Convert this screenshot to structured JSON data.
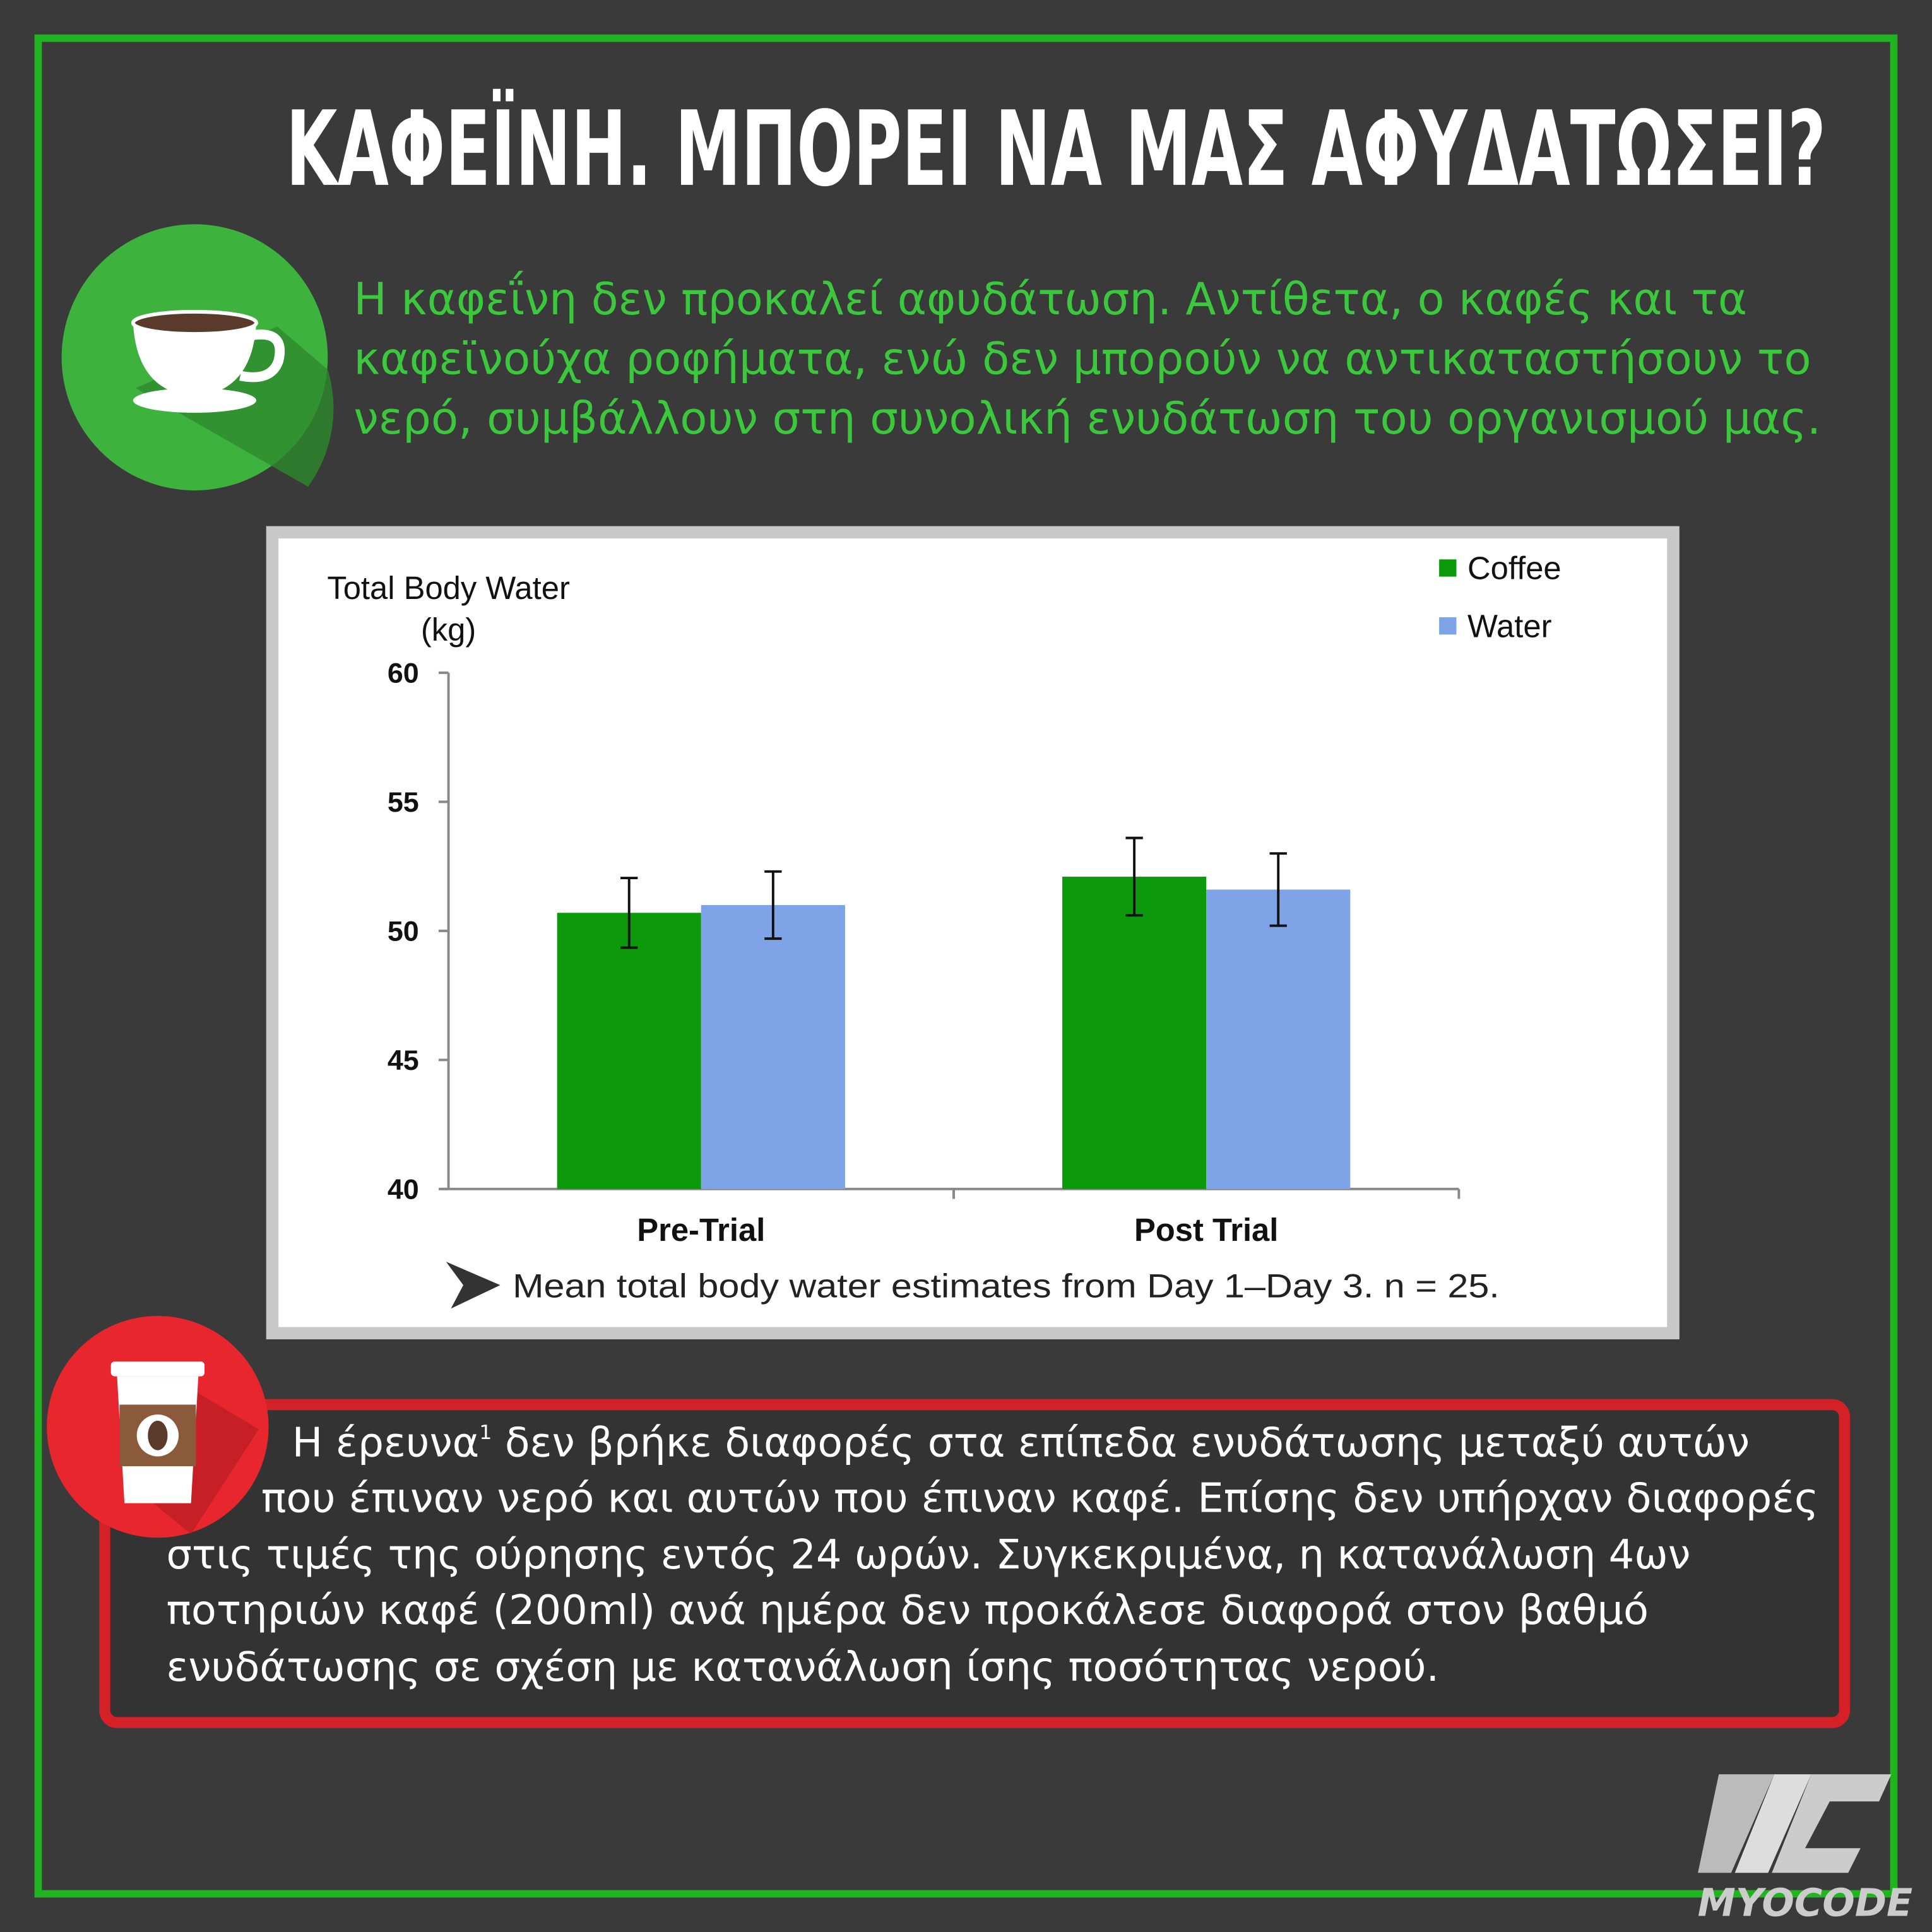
{
  "title": "ΚΑΦΕΪΝΗ. ΜΠΟΡΕΙ ΝΑ ΜΑΣ ΑΦΥΔΑΤΩΣΕΙ?",
  "summary_lines": [
    "Η καφεΐνη δεν προκαλεί αφυδάτωση. Αντίθετα, ο καφές και τα",
    "καφεϊνούχα ροφήματα, ενώ δεν μπορούν να αντικαταστήσουν το",
    "νερό, συμβάλλουν στη συνολική ενυδάτωση του οργανισμού μας."
  ],
  "chart_data": {
    "type": "bar",
    "ylabel": [
      "Total Body Water",
      "(kg)"
    ],
    "categories": [
      "Pre-Trial",
      "Post Trial"
    ],
    "series": [
      {
        "name": "Coffee",
        "color": "#0c9a0c",
        "values": [
          50.7,
          52.1
        ],
        "errors": [
          1.35,
          1.5
        ]
      },
      {
        "name": "Water",
        "color": "#7ea3e6",
        "values": [
          51.0,
          51.6
        ],
        "errors": [
          1.3,
          1.4
        ]
      }
    ],
    "ylim": [
      40,
      60
    ],
    "yticks": [
      40,
      45,
      50,
      55,
      60
    ],
    "grid": false,
    "legend": "top-right",
    "caption": "Mean total body water estimates from Day 1–Day 3. n = 25."
  },
  "research": {
    "intro": "Η έρευνα",
    "footnote": "1",
    "lines": [
      " δεν βρήκε διαφορές στα επίπεδα ενυδάτωσης μεταξύ αυτών",
      "που έπιναν νερό και αυτών που έπιναν καφέ. Επίσης δεν υπήρχαν διαφορές",
      "στις τιμές της ούρησης εντός 24 ωρών. Συγκεκριμένα, η κατανάλωση 4ων",
      "ποτηριών καφέ (200ml) ανά ημέρα δεν προκάλεσε διαφορά στον βαθμό",
      "ενυδάτωσης σε σχέση με κατανάλωση ίσης ποσότητας νερού."
    ]
  },
  "logo": "MYOCODE"
}
